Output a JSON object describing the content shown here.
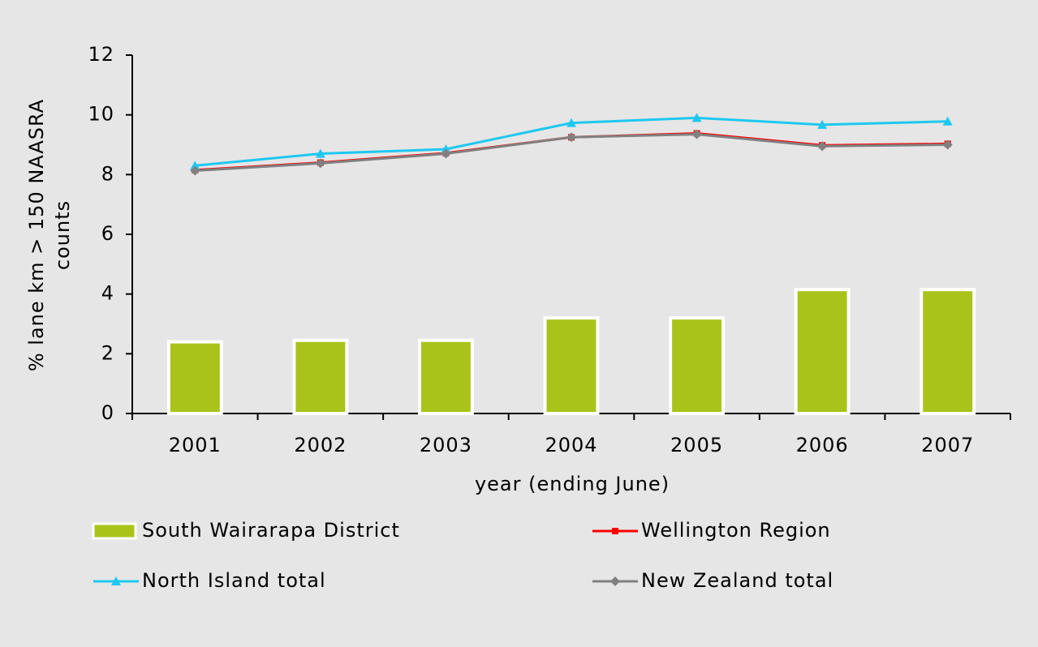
{
  "chart_data": {
    "type": "combo",
    "x_label": "year (ending June)",
    "y_label": [
      "% lane km > 150 NAASRA",
      "counts"
    ],
    "categories": [
      "2001",
      "2002",
      "2003",
      "2004",
      "2005",
      "2006",
      "2007"
    ],
    "ylim": [
      0,
      12
    ],
    "yticks": [
      0,
      2,
      4,
      6,
      8,
      10,
      12
    ],
    "grid": false,
    "legend": "bottom",
    "series": [
      {
        "name": "South Wairarapa District",
        "type": "bar",
        "color": "#aac31a",
        "values": [
          2.4,
          2.45,
          2.45,
          3.2,
          3.2,
          4.15,
          4.15
        ]
      },
      {
        "name": "Wellington Region",
        "type": "line",
        "marker": "square",
        "color": "#ff0000",
        "values": [
          8.15,
          8.4,
          8.72,
          9.25,
          9.38,
          8.98,
          9.03
        ]
      },
      {
        "name": "North Island total",
        "type": "line",
        "marker": "triangle",
        "color": "#1ec8f0",
        "values": [
          8.3,
          8.7,
          8.85,
          9.73,
          9.9,
          9.67,
          9.78
        ]
      },
      {
        "name": "New Zealand total",
        "type": "line",
        "marker": "diamond",
        "color": "#808080",
        "values": [
          8.13,
          8.38,
          8.7,
          9.25,
          9.35,
          8.95,
          9.0
        ]
      }
    ]
  }
}
